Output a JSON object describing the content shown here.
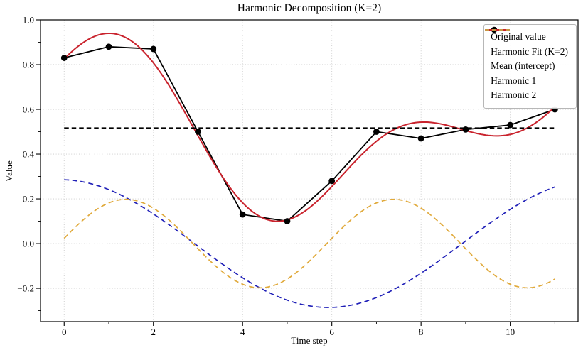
{
  "chart_data": {
    "type": "line",
    "title": "Harmonic Decomposition (K=2)",
    "xlabel": "Time step",
    "ylabel": "Value",
    "xlim": [
      -0.53,
      11.52
    ],
    "ylim": [
      -0.349,
      1.0
    ],
    "xticks": [
      0,
      2,
      4,
      6,
      8,
      10
    ],
    "xtick_labels": [
      "0",
      "2",
      "4",
      "6",
      "8",
      "10"
    ],
    "yticks": [
      1.0,
      0.8,
      0.6,
      0.4,
      0.2,
      0.0,
      -0.2
    ],
    "ytick_labels": [
      "1.0",
      "0.8",
      "0.6",
      "0.4",
      "0.2",
      "0.0",
      "−0.2"
    ],
    "x_minor_ticks": [
      1,
      3,
      5,
      7,
      9,
      11
    ],
    "y_minor_ticks": [
      0.9,
      0.7,
      0.5,
      0.3,
      0.1,
      -0.1,
      -0.3
    ],
    "grid": {
      "visible": true,
      "style": "dotted",
      "color": "#c9c9c9"
    },
    "legend_position": "upper right",
    "x": [
      0,
      1,
      2,
      3,
      4,
      5,
      6,
      7,
      8,
      9,
      10,
      11
    ],
    "series": [
      {
        "name": "Original value",
        "color": "#000000",
        "line_style": "solid",
        "marker": "circle",
        "values": [
          0.83,
          0.88,
          0.87,
          0.5,
          0.13,
          0.1,
          0.28,
          0.5,
          0.47,
          0.51,
          0.53,
          0.6
        ]
      },
      {
        "name": "Harmonic Fit (K=2)",
        "color": "#c9232d",
        "line_style": "solid",
        "marker": "none",
        "model": "mean + harmonic1 + harmonic2",
        "values_at_integer_t": [
          0.825,
          0.94,
          0.808,
          0.482,
          0.182,
          0.105,
          0.255,
          0.457,
          0.542,
          0.505,
          0.489,
          0.611
        ]
      },
      {
        "name": "Mean (intercept)",
        "color": "#000000",
        "line_style": "dashed",
        "marker": "none",
        "value": 0.517,
        "span_t": [
          0,
          11
        ]
      },
      {
        "name": "Harmonic 1",
        "color": "#2121b8",
        "line_style": "dashed",
        "marker": "none",
        "model": {
          "cos_coef": 0.2853,
          "sin_coef": -0.0117,
          "period": 12
        },
        "values_at_integer_t": [
          0.285,
          0.241,
          0.133,
          -0.012,
          -0.153,
          -0.253,
          -0.285,
          -0.241,
          -0.133,
          0.012,
          0.153,
          0.253
        ]
      },
      {
        "name": "Harmonic 2",
        "color": "#e0a93a",
        "line_style": "dashed",
        "marker": "none",
        "model": {
          "cos_coef": 0.0233,
          "sin_coef": 0.1963,
          "period": 6
        },
        "values_at_integer_t": [
          0.023,
          0.182,
          0.158,
          -0.023,
          -0.182,
          -0.158,
          0.023,
          0.182,
          0.158,
          -0.023,
          -0.182,
          -0.158
        ]
      }
    ]
  },
  "geometry_note": "plot area spans x 57-813 px, y 28-453 px"
}
